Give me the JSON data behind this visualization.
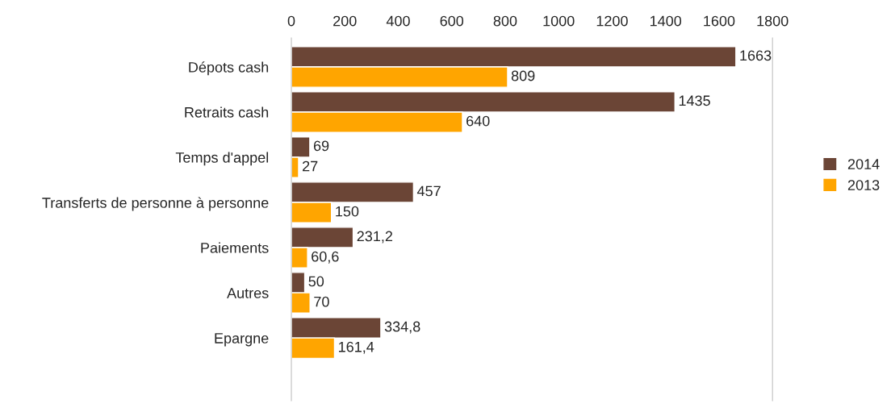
{
  "chart_data": {
    "type": "bar",
    "orientation": "horizontal",
    "categories": [
      "Dépots cash",
      "Retraits cash",
      "Temps d'appel",
      "Transferts de personne à personne",
      "Paiements",
      "Autres",
      "Epargne"
    ],
    "series": [
      {
        "name": "2014",
        "color": "#6b4536",
        "values": [
          1663,
          1435,
          69,
          457,
          231.2,
          50,
          334.8
        ],
        "value_labels": [
          "1663",
          "1435",
          "69",
          "457",
          "231,2",
          "50",
          "334,8"
        ]
      },
      {
        "name": "2013",
        "color": "#ffa500",
        "values": [
          809,
          640,
          27,
          150,
          60.6,
          70,
          161.4
        ],
        "value_labels": [
          "809",
          "640",
          "27",
          "150",
          "60,6",
          "70",
          "161,4"
        ]
      }
    ],
    "xlim": [
      0,
      1800
    ],
    "xticks": [
      0,
      200,
      400,
      600,
      800,
      1000,
      1200,
      1400,
      1600,
      1800
    ],
    "grid": false,
    "legend": "right"
  }
}
